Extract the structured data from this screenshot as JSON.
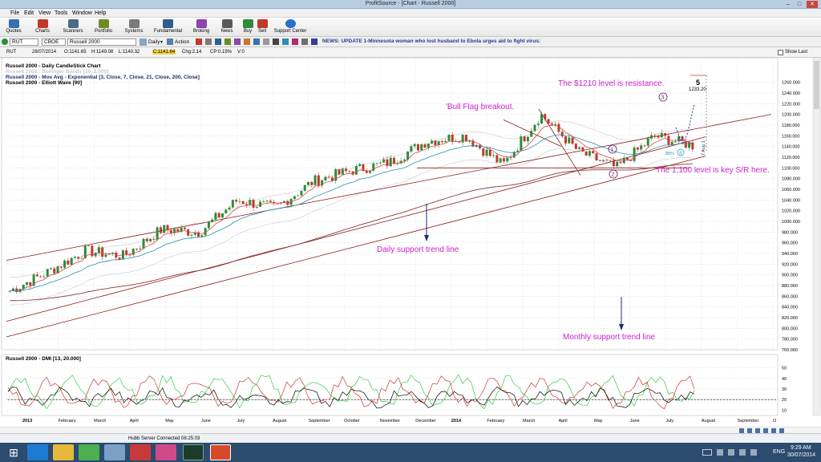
{
  "window": {
    "title": "ProfitSource - [Chart - Russell 2000]",
    "min": "–",
    "max": "□",
    "close": "✕"
  },
  "menu": [
    "File",
    "Edit",
    "View",
    "Tools",
    "Window",
    "Help"
  ],
  "toolbar": [
    {
      "label": "Quotes",
      "icon": "quotes-icon",
      "color": "#3a6fb0"
    },
    {
      "label": "Charts",
      "icon": "charts-icon",
      "color": "#c0392b"
    },
    {
      "label": "Scanners",
      "icon": "scanners-icon",
      "color": "#4b6a8a"
    },
    {
      "label": "Portfolio",
      "icon": "portfolio-icon",
      "color": "#6b8e23"
    },
    {
      "label": "Systems",
      "icon": "systems-icon",
      "color": "#7a7a7a"
    },
    {
      "label": "Fundamental",
      "icon": "fundamental-icon",
      "color": "#2e5e8e"
    },
    {
      "label": "Broking",
      "icon": "broking-icon",
      "color": "#8e44ad"
    },
    {
      "label": "News",
      "icon": "news-icon",
      "color": "#5a5a5a"
    },
    {
      "label": "Buy",
      "icon": "buy-icon",
      "color": "#2e8b3a"
    },
    {
      "label": "Sell",
      "icon": "sell-icon",
      "color": "#c0392b"
    },
    {
      "label": "Support Center",
      "icon": "support-icon",
      "color": "#2a6fd0"
    }
  ],
  "symbol_bar": {
    "symbol": "RUT",
    "exchange": "CBOE",
    "name": "Russell 2000",
    "period": "Daily",
    "action": "Action",
    "news": "NEWS: UPDATE 1-Minnesota woman who lost husband to Ebola urges aid to fight virus:",
    "show_last": "Show Last"
  },
  "info_bar": {
    "symbol": "RUT",
    "date": "28/07/2014",
    "open": "O:1141.65",
    "high": "H:1149.08",
    "low": "L:1140.32",
    "close": "C:1141.64",
    "change": "Chg:2.14",
    "change_pct": "CP:0.19%",
    "volume": "V:0"
  },
  "chart": {
    "legend": [
      {
        "text": "Russell 2000 - Daily CandleStick Chart",
        "color": "#000000"
      },
      {
        "text": "Russell 2000 - Bollinger Bands [20, 2.000]",
        "color": "#c8c8c8"
      },
      {
        "text": "Russell 2000 - Mov Avg - Exponential [3, Close, 7, Close, 21, Close, 200, Close]",
        "color": "#1f2a6a"
      },
      {
        "text": "Russell 2000 - Elliott Wave [90]",
        "color": "#000000"
      }
    ],
    "annotations": {
      "resistance": "The $1210 level is resistance.",
      "bull_flag": "'Bull Flag breakout.",
      "key_sr": "The 1,100 level is key S/R here.",
      "daily_support": "Daily support trend line",
      "monthly_support": "Monthly support trend line",
      "wave_5": "5",
      "wave_5_value": "1233.20",
      "wave_1": "1",
      "wave_2": "2",
      "wave_3": "3",
      "pct": "88%",
      "wave_4": "4",
      "date_tag": "7 Aug 1"
    },
    "dmi_label": "Russell 2000 - DMI [13, 20.000]",
    "colors": {
      "annotation": "#cc22cc",
      "price_up": "#2e8b3a",
      "price_down": "#c0392b",
      "trend": "#8b1a1a",
      "arrow": "#1f2a6a"
    }
  },
  "chart_data": [
    {
      "type": "candlestick",
      "title": "Russell 2000 - Daily CandleStick Chart",
      "ylim": [
        760,
        1270
      ],
      "y_ticks": [
        "1260.000",
        "1240.000",
        "1220.000",
        "1200.000",
        "1180.000",
        "1160.000",
        "1140.000",
        "1120.000",
        "1100.000",
        "1080.000",
        "1060.000",
        "1040.000",
        "1020.000",
        "1000.000",
        "980.000",
        "960.000",
        "940.000",
        "920.000",
        "900.000",
        "880.000",
        "860.000",
        "840.000",
        "820.000",
        "800.000",
        "780.000",
        "760.000"
      ],
      "x_ticks": [
        "2013",
        "February",
        "March",
        "April",
        "May",
        "June",
        "July",
        "August",
        "September",
        "October",
        "November",
        "December",
        "2014",
        "February",
        "March",
        "April",
        "May",
        "June",
        "July",
        "August",
        "September",
        "O"
      ],
      "series": [
        {
          "name": "Close",
          "x": [
            "Jan 2013",
            "Feb 2013",
            "Mar 2013",
            "Apr 2013",
            "May 2013",
            "Jun 2013",
            "Jul 2013",
            "Aug 2013",
            "Sep 2013",
            "Oct 2013",
            "Nov 2013",
            "Dec 2013",
            "Jan 2014",
            "Feb 2014",
            "Mar 2014",
            "Apr 2014",
            "May 2014",
            "Jun 2014",
            "Jul 2014"
          ],
          "values": [
            870,
            905,
            945,
            935,
            985,
            980,
            1040,
            1025,
            1075,
            1095,
            1110,
            1150,
            1160,
            1105,
            1200,
            1130,
            1100,
            1160,
            1142
          ]
        }
      ]
    },
    {
      "type": "line",
      "title": "Russell 2000 - DMI [13, 20.000]",
      "ylim": [
        5,
        55
      ],
      "y_ticks": [
        "50",
        "40",
        "30",
        "20",
        "10"
      ]
    }
  ],
  "status": {
    "server": "Hubb Server Connected 08:25:03"
  },
  "taskbar": {
    "time": "9:29 AM",
    "date": "30/07/2014",
    "lang": "ENG"
  }
}
